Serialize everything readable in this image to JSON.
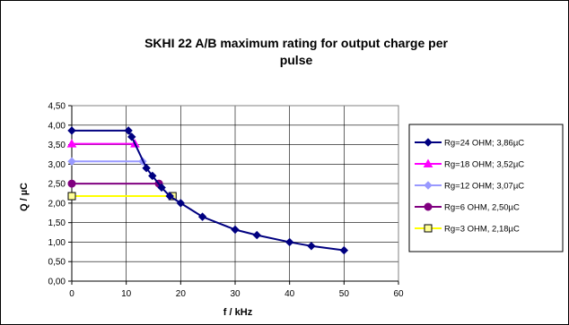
{
  "chart_data": {
    "type": "line",
    "title_line1": "SKHI 22 A/B maximum rating for output charge per",
    "title_line2": "pulse",
    "xlabel": "f / kHz",
    "ylabel": "Q / µC",
    "xlim": [
      0,
      60
    ],
    "ylim": [
      0,
      4.5
    ],
    "x_ticks": [
      "0",
      "10",
      "20",
      "30",
      "40",
      "50",
      "60"
    ],
    "y_ticks": [
      "0,00",
      "0,50",
      "1,00",
      "1,50",
      "2,00",
      "2,50",
      "3,00",
      "3,50",
      "4,00",
      "4,50"
    ],
    "grid": true,
    "legend_position": "right",
    "series": [
      {
        "name": "Rg=24  OHM; 3,86µC",
        "color": "#000080",
        "marker": "diamond",
        "marker_fill": "#000080",
        "points": [
          [
            0,
            3.86
          ],
          [
            10.4,
            3.86
          ],
          [
            11,
            3.7
          ],
          [
            13.7,
            2.9
          ],
          [
            14.8,
            2.7
          ],
          [
            16.5,
            2.4
          ],
          [
            18,
            2.18
          ],
          [
            20,
            2.0
          ],
          [
            24,
            1.65
          ],
          [
            30,
            1.32
          ],
          [
            34,
            1.18
          ],
          [
            40,
            1.0
          ],
          [
            44,
            0.9
          ],
          [
            50,
            0.79
          ]
        ]
      },
      {
        "name": "Rg=18  OHM; 3,52µC",
        "color": "#ff00ff",
        "marker": "triangle",
        "marker_fill": "#ff00ff",
        "points": [
          [
            0,
            3.52
          ],
          [
            11.6,
            3.52
          ]
        ]
      },
      {
        "name": "Rg=12  OHM; 3,07µC",
        "color": "#9999ff",
        "marker": "diamond",
        "marker_fill": "#9999ff",
        "points": [
          [
            0,
            3.07
          ],
          [
            13,
            3.07
          ]
        ]
      },
      {
        "name": "Rg=6  OHM, 2,50µC",
        "color": "#800080",
        "marker": "circle",
        "marker_fill": "#800080",
        "points": [
          [
            0,
            2.5
          ],
          [
            16,
            2.5
          ]
        ]
      },
      {
        "name": "Rg=3  OHM, 2,18µC",
        "color": "#ffff00",
        "marker": "square",
        "marker_fill": "#ffff99",
        "points": [
          [
            0,
            2.18
          ],
          [
            18.5,
            2.18
          ]
        ]
      }
    ]
  }
}
